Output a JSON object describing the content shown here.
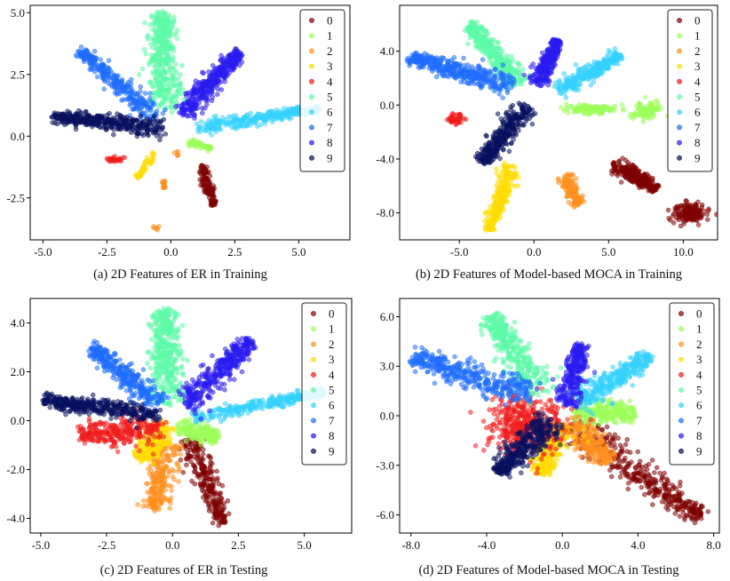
{
  "chart_data": [
    {
      "type": "scatter",
      "caption": "(a) 2D Features of ER in Training",
      "xlim": [
        -5.5,
        7.0
      ],
      "ylim": [
        -4.2,
        5.3
      ],
      "xticks": [
        -5.0,
        -2.5,
        0.0,
        2.5,
        5.0
      ],
      "yticks": [
        -2.5,
        0.0,
        2.5,
        5.0
      ],
      "xtick_labels": [
        "-5.0",
        "-2.5",
        "0.0",
        "2.5",
        "5.0"
      ],
      "ytick_labels": [
        "-2.5",
        "0.0",
        "2.5",
        "5.0"
      ],
      "legend": [
        "0",
        "1",
        "2",
        "3",
        "4",
        "5",
        "6",
        "7",
        "8",
        "9"
      ],
      "legend_position": "top-right",
      "grid": false,
      "clusters": [
        {
          "class": "0",
          "shape": "line",
          "from": [
            1.2,
            -1.2
          ],
          "to": [
            1.7,
            -2.8
          ],
          "width": 0.12,
          "n": 120
        },
        {
          "class": "1",
          "shape": "line",
          "from": [
            0.7,
            -0.25
          ],
          "to": [
            1.6,
            -0.5
          ],
          "width": 0.08,
          "n": 70
        },
        {
          "class": "2",
          "shape": "line",
          "from": [
            -0.3,
            -1.8
          ],
          "to": [
            -0.25,
            -2.1
          ],
          "width": 0.05,
          "n": 20
        },
        {
          "class": "2",
          "shape": "blob",
          "center": [
            -0.6,
            -3.7
          ],
          "spread": [
            0.06,
            0.06
          ],
          "n": 6
        },
        {
          "class": "2",
          "shape": "blob",
          "center": [
            0.2,
            -0.7
          ],
          "spread": [
            0.05,
            0.05
          ],
          "n": 6
        },
        {
          "class": "3",
          "shape": "line",
          "from": [
            -0.6,
            -0.6
          ],
          "to": [
            -1.3,
            -1.7
          ],
          "width": 0.1,
          "n": 45
        },
        {
          "class": "4",
          "shape": "blob",
          "center": [
            -2.2,
            -0.95
          ],
          "spread": [
            0.18,
            0.05
          ],
          "n": 30
        },
        {
          "class": "5",
          "shape": "line",
          "from": [
            -0.2,
            1.0
          ],
          "to": [
            -0.4,
            5.0
          ],
          "width": 0.4,
          "n": 420
        },
        {
          "class": "6",
          "shape": "line",
          "from": [
            1.0,
            0.35
          ],
          "to": [
            5.8,
            1.1
          ],
          "width": 0.15,
          "n": 320
        },
        {
          "class": "7",
          "shape": "line",
          "from": [
            -0.5,
            0.7
          ],
          "to": [
            -3.6,
            3.5
          ],
          "width": 0.22,
          "n": 300
        },
        {
          "class": "8",
          "shape": "line",
          "from": [
            0.4,
            0.9
          ],
          "to": [
            2.7,
            3.4
          ],
          "width": 0.25,
          "n": 380
        },
        {
          "class": "9",
          "shape": "line",
          "from": [
            -0.2,
            0.3
          ],
          "to": [
            -4.6,
            0.8
          ],
          "width": 0.2,
          "n": 400
        }
      ]
    },
    {
      "type": "scatter",
      "caption": "(b) 2D Features of Model-based MOCA in Training",
      "xlim": [
        -9.0,
        12.3
      ],
      "ylim": [
        -10.0,
        7.4
      ],
      "xticks": [
        -5.0,
        0.0,
        5.0,
        10.0
      ],
      "yticks": [
        -8.0,
        -4.0,
        0.0,
        4.0
      ],
      "xtick_labels": [
        "-5.0",
        "0.0",
        "5.0",
        "10.0"
      ],
      "ytick_labels": [
        "-8.0",
        "-4.0",
        "0.0",
        "4.0"
      ],
      "legend": [
        "0",
        "1",
        "2",
        "3",
        "4",
        "5",
        "6",
        "7",
        "8",
        "9"
      ],
      "legend_position": "top-right",
      "grid": false,
      "clusters": [
        {
          "class": "0",
          "shape": "line",
          "from": [
            5.3,
            -4.3
          ],
          "to": [
            8.2,
            -6.2
          ],
          "width": 0.35,
          "n": 260
        },
        {
          "class": "0",
          "shape": "blob",
          "center": [
            10.5,
            -8.0
          ],
          "spread": [
            0.55,
            0.35
          ],
          "n": 150
        },
        {
          "class": "1",
          "shape": "blob",
          "center": [
            3.8,
            -0.3
          ],
          "spread": [
            0.8,
            0.18
          ],
          "n": 130
        },
        {
          "class": "1",
          "shape": "blob",
          "center": [
            7.5,
            -0.4
          ],
          "spread": [
            0.45,
            0.3
          ],
          "n": 110
        },
        {
          "class": "2",
          "shape": "line",
          "from": [
            2.0,
            -5.2
          ],
          "to": [
            3.0,
            -7.4
          ],
          "width": 0.3,
          "n": 150
        },
        {
          "class": "3",
          "shape": "line",
          "from": [
            -1.5,
            -4.4
          ],
          "to": [
            -3.0,
            -9.3
          ],
          "width": 0.35,
          "n": 260
        },
        {
          "class": "4",
          "shape": "blob",
          "center": [
            -5.2,
            -1.0
          ],
          "spread": [
            0.3,
            0.2
          ],
          "n": 50
        },
        {
          "class": "5",
          "shape": "line",
          "from": [
            -1.0,
            1.5
          ],
          "to": [
            -4.3,
            6.0
          ],
          "width": 0.45,
          "n": 360
        },
        {
          "class": "6",
          "shape": "line",
          "from": [
            1.5,
            1.0
          ],
          "to": [
            5.8,
            3.7
          ],
          "width": 0.35,
          "n": 300
        },
        {
          "class": "7",
          "shape": "line",
          "from": [
            -1.2,
            1.3
          ],
          "to": [
            -8.3,
            3.6
          ],
          "width": 0.45,
          "n": 400
        },
        {
          "class": "8",
          "shape": "line",
          "from": [
            0.2,
            1.5
          ],
          "to": [
            1.6,
            4.8
          ],
          "width": 0.35,
          "n": 260
        },
        {
          "class": "9",
          "shape": "line",
          "from": [
            -0.4,
            0.0
          ],
          "to": [
            -3.5,
            -4.2
          ],
          "width": 0.45,
          "n": 340
        }
      ]
    },
    {
      "type": "scatter",
      "caption": "(c) 2D Features of ER in Testing",
      "xlim": [
        -5.4,
        6.8
      ],
      "ylim": [
        -4.6,
        5.0
      ],
      "xticks": [
        -5.0,
        -2.5,
        0.0,
        2.5,
        5.0
      ],
      "yticks": [
        -4.0,
        -2.0,
        0.0,
        2.0,
        4.0
      ],
      "xtick_labels": [
        "-5.0",
        "-2.5",
        "0.0",
        "2.5",
        "5.0"
      ],
      "ytick_labels": [
        "-4.0",
        "-2.0",
        "0.0",
        "2.0",
        "4.0"
      ],
      "legend": [
        "0",
        "1",
        "2",
        "3",
        "4",
        "5",
        "6",
        "7",
        "8",
        "9"
      ],
      "legend_position": "top-right",
      "grid": false,
      "clusters": [
        {
          "class": "0",
          "shape": "line",
          "from": [
            0.6,
            -0.5
          ],
          "to": [
            1.9,
            -4.2
          ],
          "width": 0.3,
          "n": 260
        },
        {
          "class": "1",
          "shape": "line",
          "from": [
            0.2,
            -0.3
          ],
          "to": [
            1.7,
            -0.7
          ],
          "width": 0.25,
          "n": 200
        },
        {
          "class": "2",
          "shape": "line",
          "from": [
            -0.1,
            -0.8
          ],
          "to": [
            -0.7,
            -3.6
          ],
          "width": 0.35,
          "n": 240
        },
        {
          "class": "3",
          "shape": "line",
          "from": [
            -0.2,
            -0.2
          ],
          "to": [
            -1.2,
            -1.6
          ],
          "width": 0.35,
          "n": 220
        },
        {
          "class": "4",
          "shape": "line",
          "from": [
            -0.3,
            -0.3
          ],
          "to": [
            -3.5,
            -0.6
          ],
          "width": 0.4,
          "n": 300
        },
        {
          "class": "5",
          "shape": "line",
          "from": [
            -0.2,
            0.6
          ],
          "to": [
            -0.3,
            4.6
          ],
          "width": 0.38,
          "n": 420
        },
        {
          "class": "6",
          "shape": "line",
          "from": [
            0.8,
            0.1
          ],
          "to": [
            5.8,
            1.2
          ],
          "width": 0.15,
          "n": 330
        },
        {
          "class": "7",
          "shape": "line",
          "from": [
            -0.4,
            0.6
          ],
          "to": [
            -3.1,
            3.0
          ],
          "width": 0.28,
          "n": 320
        },
        {
          "class": "8",
          "shape": "line",
          "from": [
            0.4,
            0.6
          ],
          "to": [
            3.0,
            3.3
          ],
          "width": 0.3,
          "n": 360
        },
        {
          "class": "9",
          "shape": "line",
          "from": [
            -0.5,
            0.2
          ],
          "to": [
            -4.9,
            0.85
          ],
          "width": 0.22,
          "n": 400
        }
      ]
    },
    {
      "type": "scatter",
      "caption": "(d) 2D Features of Model-based MOCA in Testing",
      "xlim": [
        -8.6,
        8.3
      ],
      "ylim": [
        -7.1,
        7.1
      ],
      "xticks": [
        -8.0,
        -4.0,
        0.0,
        4.0,
        8.0
      ],
      "yticks": [
        -6.0,
        -3.0,
        0.0,
        3.0,
        6.0
      ],
      "xtick_labels": [
        "-8.0",
        "-4.0",
        "0.0",
        "4.0",
        "8.0"
      ],
      "ytick_labels": [
        "-6.0",
        "-3.0",
        "0.0",
        "3.0",
        "6.0"
      ],
      "legend": [
        "0",
        "1",
        "2",
        "3",
        "4",
        "5",
        "6",
        "7",
        "8",
        "9"
      ],
      "legend_position": "top-right",
      "grid": false,
      "clusters": [
        {
          "class": "0",
          "shape": "line",
          "from": [
            0.5,
            -0.5
          ],
          "to": [
            7.3,
            -6.2
          ],
          "width": 0.55,
          "n": 380
        },
        {
          "class": "1",
          "shape": "line",
          "from": [
            0.5,
            0.2
          ],
          "to": [
            3.8,
            0.2
          ],
          "width": 0.5,
          "n": 260
        },
        {
          "class": "2",
          "shape": "line",
          "from": [
            0.3,
            -0.3
          ],
          "to": [
            2.5,
            -2.8
          ],
          "width": 0.5,
          "n": 240
        },
        {
          "class": "3",
          "shape": "line",
          "from": [
            -0.2,
            -0.5
          ],
          "to": [
            -1.1,
            -3.5
          ],
          "width": 0.5,
          "n": 240
        },
        {
          "class": "4",
          "shape": "blob",
          "center": [
            -2.0,
            -0.5
          ],
          "spread": [
            1.0,
            0.9
          ],
          "n": 420
        },
        {
          "class": "5",
          "shape": "line",
          "from": [
            -1.0,
            1.3
          ],
          "to": [
            -3.8,
            6.0
          ],
          "width": 0.55,
          "n": 380
        },
        {
          "class": "6",
          "shape": "line",
          "from": [
            0.8,
            0.8
          ],
          "to": [
            4.6,
            3.6
          ],
          "width": 0.4,
          "n": 320
        },
        {
          "class": "7",
          "shape": "line",
          "from": [
            -1.4,
            1.2
          ],
          "to": [
            -7.9,
            3.5
          ],
          "width": 0.5,
          "n": 380
        },
        {
          "class": "8",
          "shape": "line",
          "from": [
            0.2,
            0.6
          ],
          "to": [
            1.0,
            4.3
          ],
          "width": 0.38,
          "n": 280
        },
        {
          "class": "9",
          "shape": "line",
          "from": [
            -0.5,
            -0.3
          ],
          "to": [
            -3.4,
            -3.4
          ],
          "width": 0.5,
          "n": 360
        }
      ]
    }
  ],
  "class_colors": [
    "#7f0000",
    "#9cff5a",
    "#ff8f1f",
    "#ffdc00",
    "#f01e1e",
    "#5dfaa8",
    "#35d2ff",
    "#1f6dff",
    "#2a1cf0",
    "#08105e"
  ]
}
